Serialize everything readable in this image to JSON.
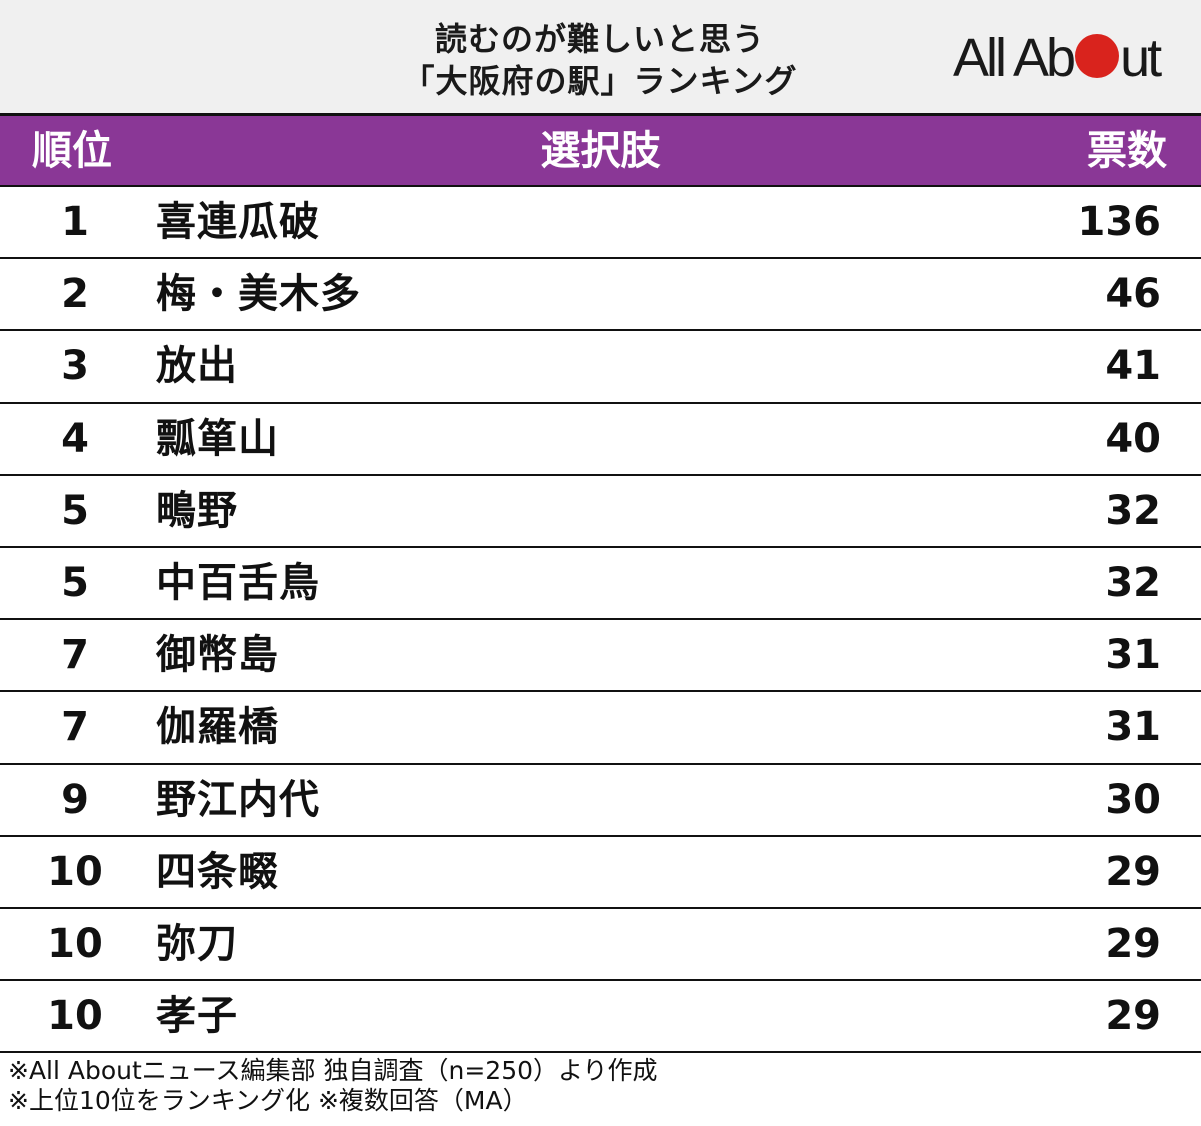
{
  "title": {
    "line1": "読むのが難しいと思う",
    "line2": "「大阪府の駅」ランキング"
  },
  "logo": {
    "text_before": "All Ab",
    "text_after": "ut",
    "dot_color": "#d9231d"
  },
  "colors": {
    "header_bg": "#8a3796",
    "title_bg": "#f0f0f0"
  },
  "table": {
    "headers": {
      "rank": "順位",
      "choice": "選択肢",
      "votes": "票数"
    },
    "rows": [
      {
        "rank": "1",
        "name": "喜連瓜破",
        "votes": "136"
      },
      {
        "rank": "2",
        "name": "梅・美木多",
        "votes": "46"
      },
      {
        "rank": "3",
        "name": "放出",
        "votes": "41"
      },
      {
        "rank": "4",
        "name": "瓢箪山",
        "votes": "40"
      },
      {
        "rank": "5",
        "name": "鴫野",
        "votes": "32"
      },
      {
        "rank": "5",
        "name": "中百舌鳥",
        "votes": "32"
      },
      {
        "rank": "7",
        "name": "御幣島",
        "votes": "31"
      },
      {
        "rank": "7",
        "name": "伽羅橋",
        "votes": "31"
      },
      {
        "rank": "9",
        "name": "野江内代",
        "votes": "30"
      },
      {
        "rank": "10",
        "name": "四条畷",
        "votes": "29"
      },
      {
        "rank": "10",
        "name": "弥刀",
        "votes": "29"
      },
      {
        "rank": "10",
        "name": "孝子",
        "votes": "29"
      }
    ]
  },
  "notes": {
    "line1": "※All Aboutニュース編集部 独自調査（n=250）より作成",
    "line2": "※上位10位をランキング化 ※複数回答（MA）"
  },
  "chart_data": {
    "type": "table",
    "title": "読むのが難しいと思う「大阪府の駅」ランキング",
    "columns": [
      "順位",
      "選択肢",
      "票数"
    ],
    "categories": [
      "喜連瓜破",
      "梅・美木多",
      "放出",
      "瓢箪山",
      "鴫野",
      "中百舌鳥",
      "御幣島",
      "伽羅橋",
      "野江内代",
      "四条畷",
      "弥刀",
      "孝子"
    ],
    "ranks": [
      1,
      2,
      3,
      4,
      5,
      5,
      7,
      7,
      9,
      10,
      10,
      10
    ],
    "values": [
      136,
      46,
      41,
      40,
      32,
      32,
      31,
      31,
      30,
      29,
      29,
      29
    ],
    "notes": [
      "※All Aboutニュース編集部 独自調査（n=250）より作成",
      "※上位10位をランキング化 ※複数回答（MA）"
    ]
  }
}
